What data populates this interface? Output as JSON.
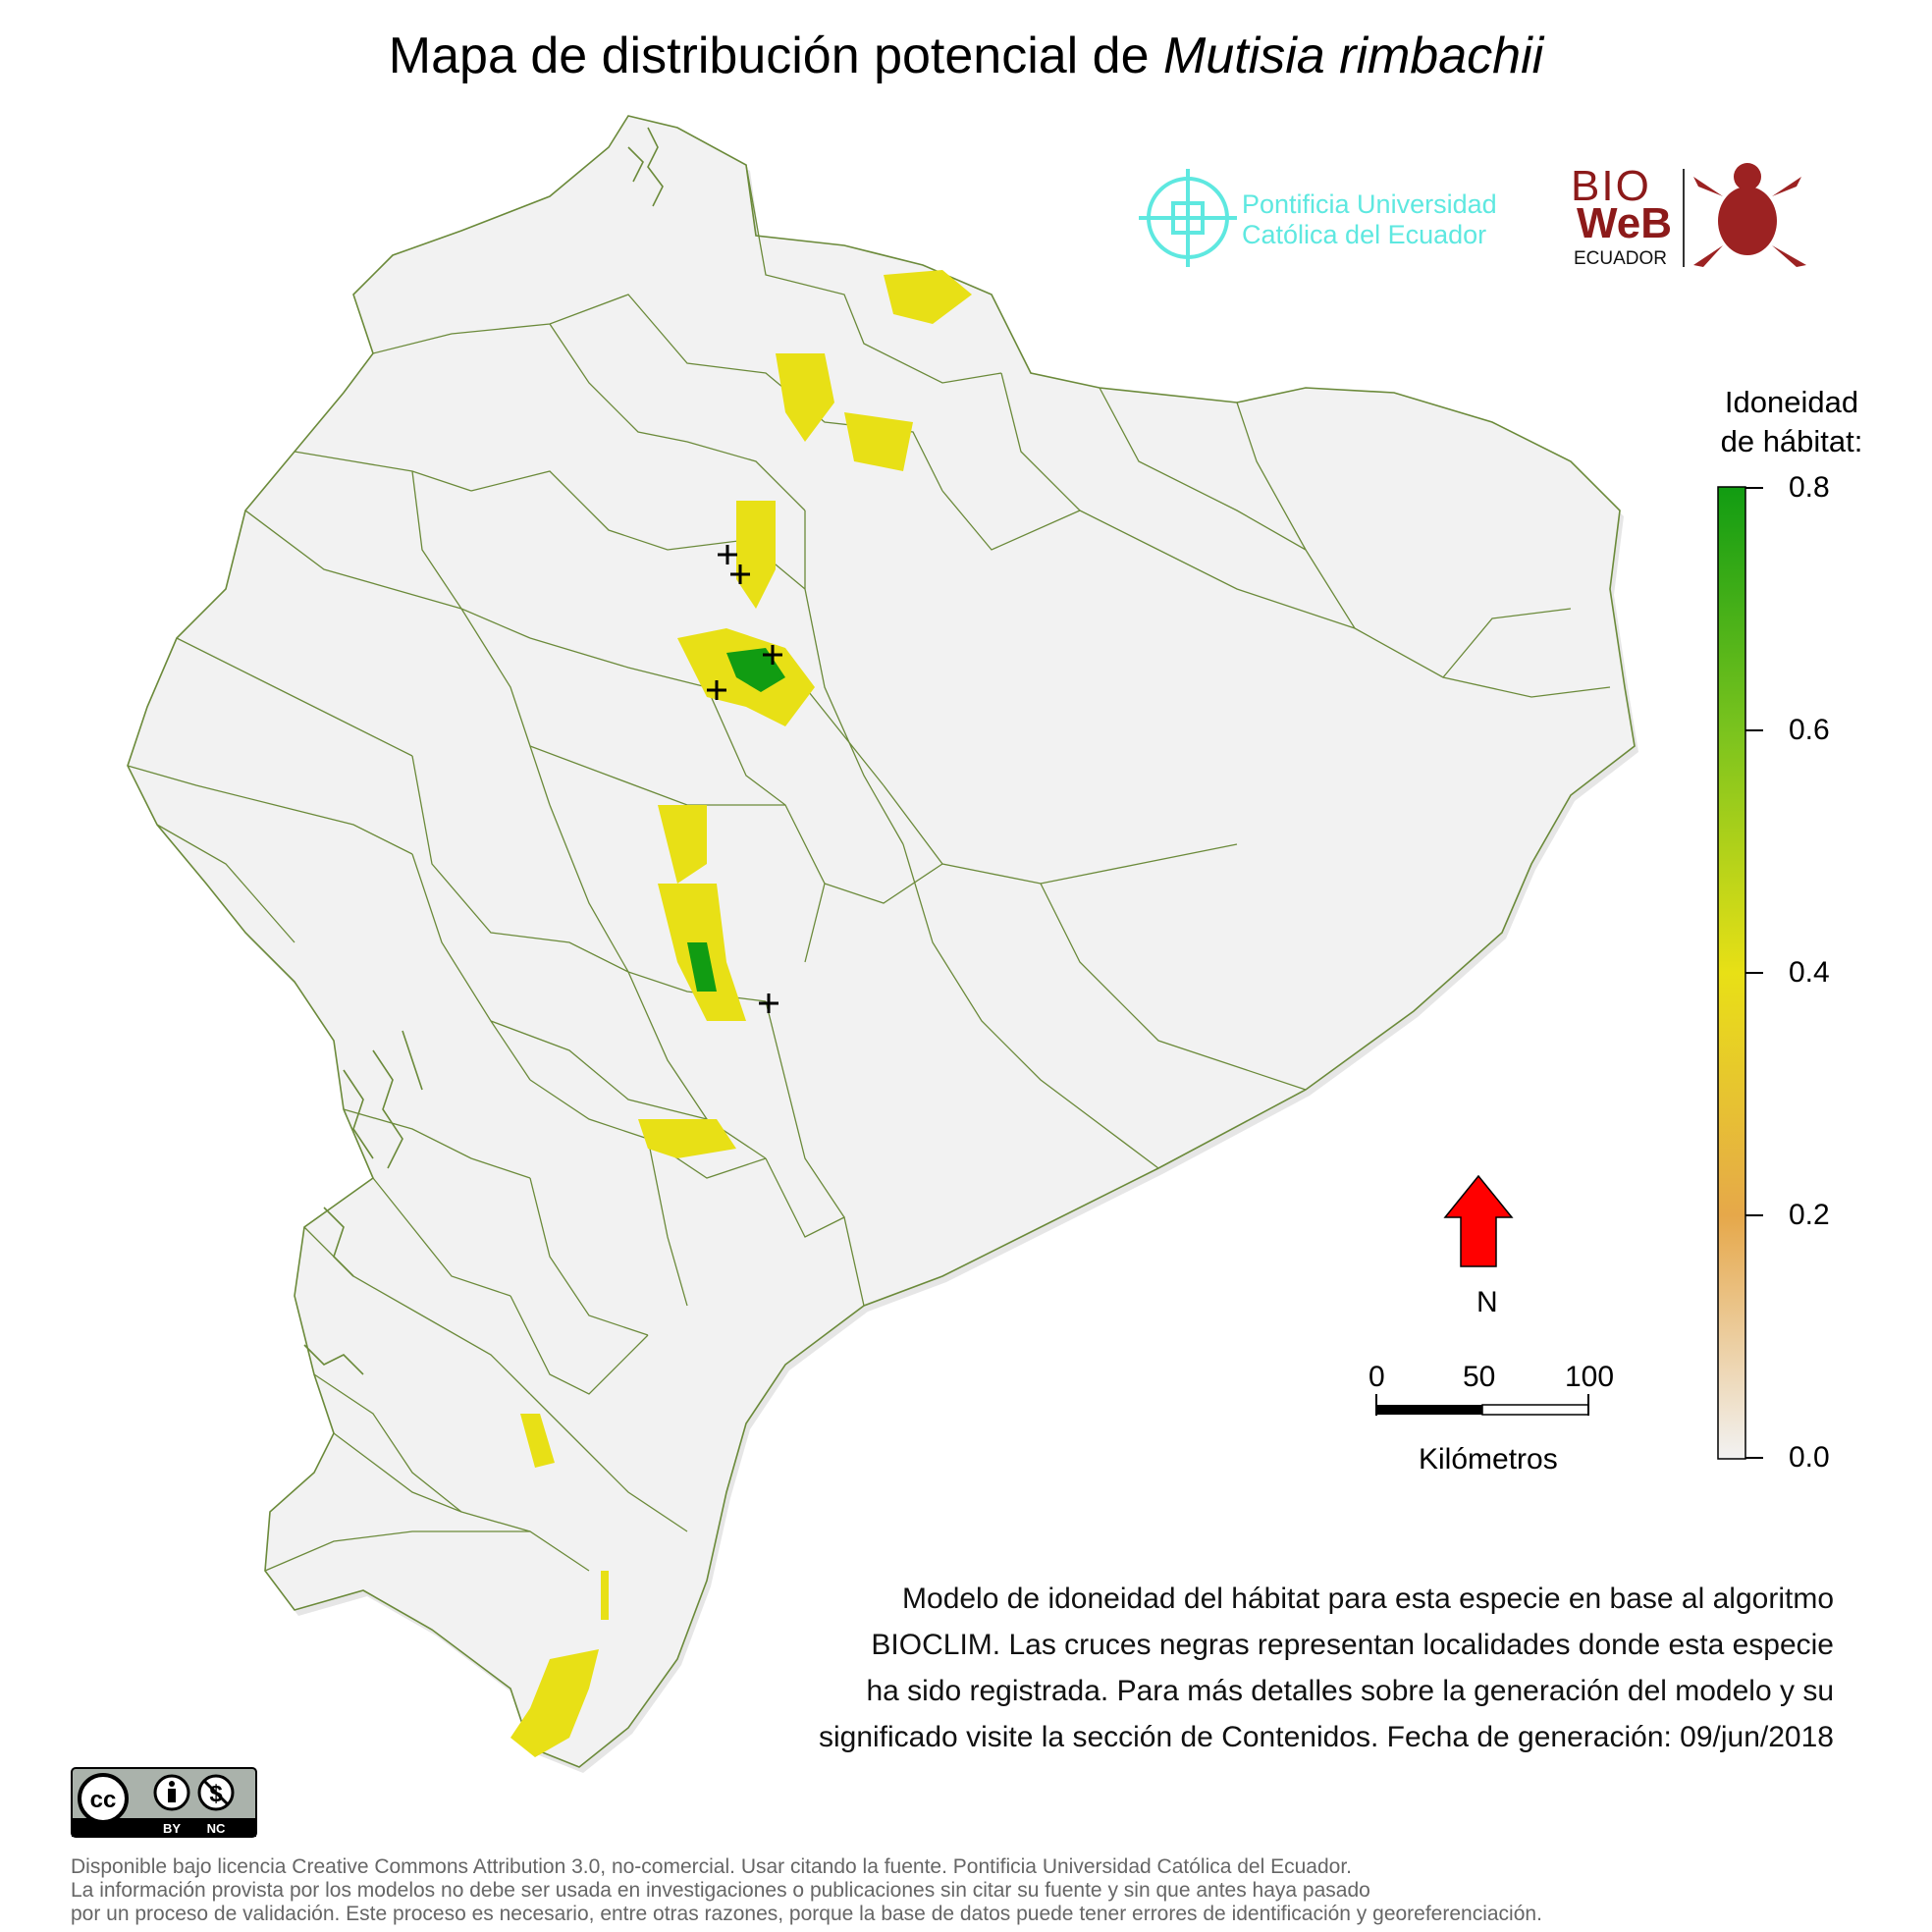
{
  "title": {
    "prefix": "Mapa de distribución potencial de",
    "species": "Mutisia rimbachii"
  },
  "logos": {
    "puce_line1": "Pontificia Universidad",
    "puce_line2": "Católica del Ecuador",
    "bioweb_line1": "BIO",
    "bioweb_line2": "WeB",
    "bioweb_line3": "ECUADOR"
  },
  "legend": {
    "title_line1": "Idoneidad",
    "title_line2": "de hábitat:",
    "ticks": [
      "0.8",
      "0.6",
      "0.4",
      "0.2",
      "0.0"
    ],
    "colors": [
      "#f2f2f2",
      "#e6a84a",
      "#e8e016",
      "#7ac31e",
      "#119c12"
    ]
  },
  "north": {
    "label": "N",
    "color": "#ff0000"
  },
  "scale": {
    "labels": [
      "0",
      "50",
      "100"
    ],
    "unit": "Kilómetros"
  },
  "description": {
    "line1": "Modelo de idoneidad del hábitat para esta especie en base al algoritmo",
    "line2": "BIOCLIM. Las cruces negras representan localidades donde esta especie",
    "line3": "ha sido registrada. Para más detalles sobre la generación del modelo y su",
    "line4": "significado visite la sección de Contenidos. Fecha de generación: 09/jun/2018"
  },
  "license": {
    "line1": "Disponible bajo licencia Creative Commons Attribution 3.0, no-comercial. Usar citando la fuente. Pontificia Universidad Católica del Ecuador.",
    "line2": "La información provista por los modelos no debe ser usada en investigaciones o publicaciones sin citar su fuente y sin que antes haya pasado",
    "line3": "por un proceso de validación. Este proceso es necesario, entre otras razones, porque la base de datos puede tener errores de identificación y georeferenciación.",
    "badge_cc": "cc",
    "badge_by": "BY",
    "badge_nc": "NC"
  },
  "map_colors": {
    "land": "#f2f2f2",
    "border": "#6b8a3a",
    "halo": "#e6e6e6"
  }
}
